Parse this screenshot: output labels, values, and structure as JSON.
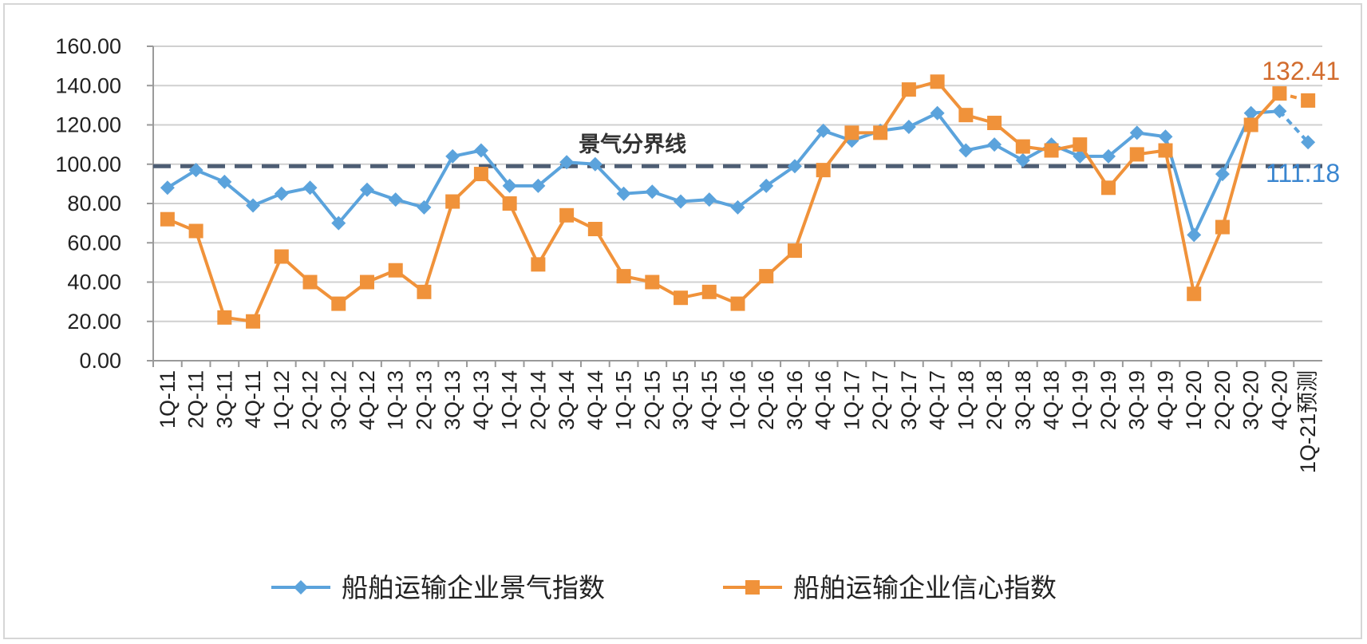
{
  "chart_data": {
    "type": "line",
    "title": "",
    "xlabel": "",
    "ylabel": "",
    "ylim": [
      0,
      160
    ],
    "y_ticks": [
      "0.00",
      "20.00",
      "40.00",
      "60.00",
      "80.00",
      "100.00",
      "120.00",
      "140.00",
      "160.00"
    ],
    "grid": true,
    "legend_position": "bottom",
    "categories": [
      "1Q-11",
      "2Q-11",
      "3Q-11",
      "4Q-11",
      "1Q-12",
      "2Q-12",
      "3Q-12",
      "4Q-12",
      "1Q-13",
      "2Q-13",
      "3Q-13",
      "4Q-13",
      "1Q-14",
      "2Q-14",
      "3Q-14",
      "4Q-14",
      "1Q-15",
      "2Q-15",
      "3Q-15",
      "4Q-15",
      "1Q-16",
      "2Q-16",
      "3Q-16",
      "4Q-16",
      "1Q-17",
      "2Q-17",
      "3Q-17",
      "4Q-17",
      "1Q-18",
      "2Q-18",
      "3Q-18",
      "4Q-18",
      "1Q-19",
      "2Q-19",
      "3Q-19",
      "4Q-19",
      "1Q-20",
      "2Q-20",
      "3Q-20",
      "4Q-20",
      "1Q-21预测"
    ],
    "series": [
      {
        "name": "船舶运输企业景气指数",
        "color": "#5ba3dc",
        "marker": "diamond",
        "forecast_dashed_last": true,
        "values": [
          88,
          97,
          91,
          79,
          85,
          88,
          70,
          87,
          82,
          78,
          104,
          107,
          89,
          89,
          101,
          100,
          85,
          86,
          81,
          82,
          78,
          89,
          99,
          117,
          112,
          117,
          119,
          126,
          107,
          110,
          102,
          110,
          104,
          104,
          116,
          114,
          64,
          95,
          126,
          127,
          111.18
        ]
      },
      {
        "name": "船舶运输企业信心指数",
        "color": "#f0923a",
        "marker": "square",
        "forecast_dashed_last": true,
        "values": [
          72,
          66,
          22,
          20,
          53,
          40,
          29,
          40,
          46,
          35,
          81,
          95,
          80,
          49,
          74,
          67,
          43,
          40,
          32,
          35,
          29,
          43,
          56,
          97,
          116,
          116,
          138,
          142,
          125,
          121,
          109,
          107,
          110,
          88,
          105,
          107,
          34,
          68,
          120,
          136,
          132.41
        ]
      }
    ],
    "reference_line": {
      "value": 99,
      "label": "景气分界线",
      "color": "#4d5d73",
      "style": "dashed"
    },
    "annotations": [
      {
        "text": "132.41",
        "color": "#d26c2e",
        "series": 1
      },
      {
        "text": "111.18",
        "color": "#3a86d0",
        "series": 0
      }
    ]
  }
}
